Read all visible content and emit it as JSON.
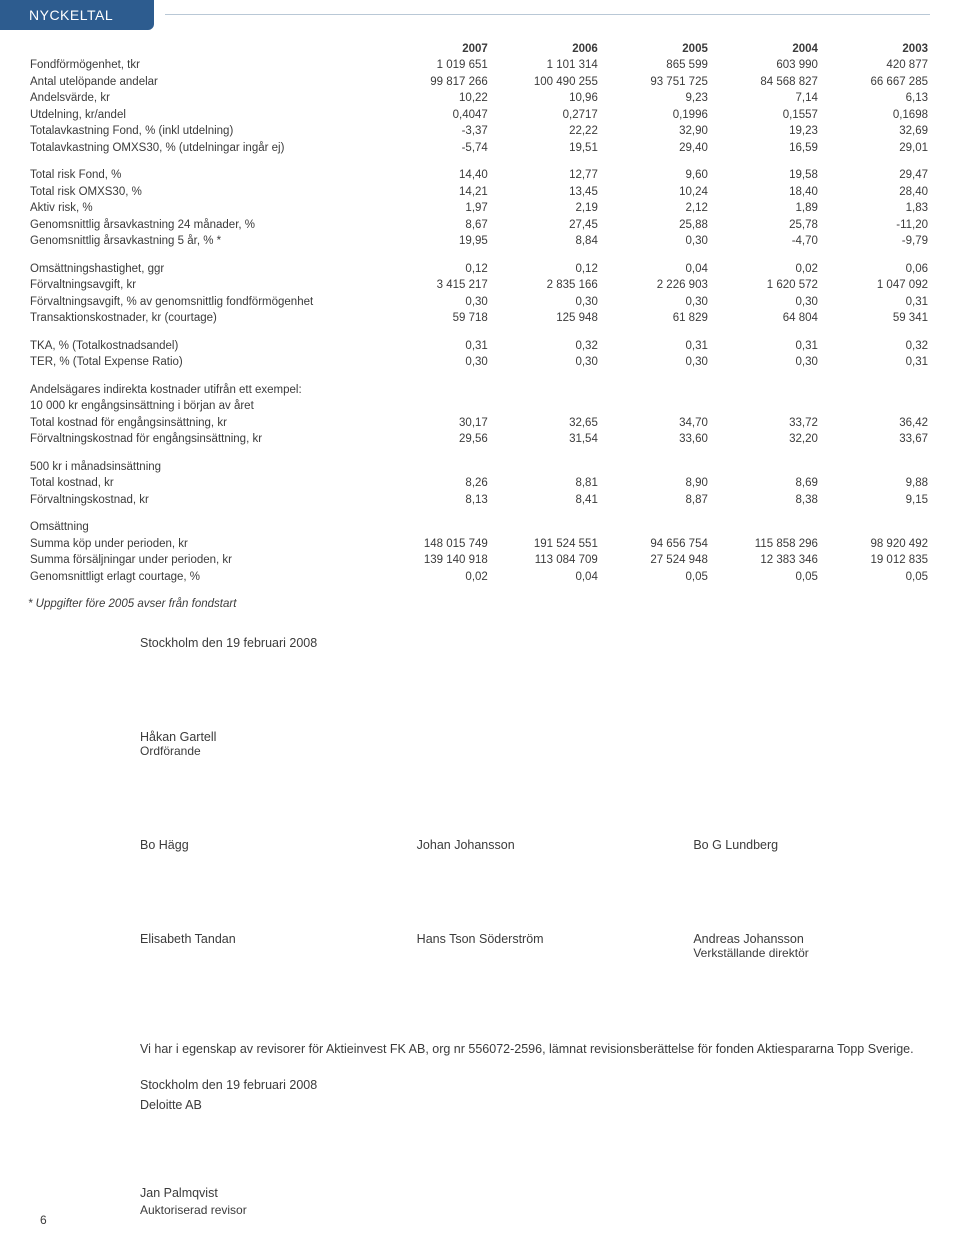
{
  "header_title": "NYCKELTAL",
  "years": [
    "2007",
    "2006",
    "2005",
    "2004",
    "2003"
  ],
  "groups": [
    {
      "rows": [
        {
          "l": "Fondförmögenhet, tkr",
          "v": [
            "1 019 651",
            "1 101 314",
            "865 599",
            "603 990",
            "420 877"
          ]
        },
        {
          "l": "Antal utelöpande andelar",
          "v": [
            "99 817 266",
            "100 490 255",
            "93 751 725",
            "84 568 827",
            "66 667 285"
          ]
        },
        {
          "l": "Andelsvärde, kr",
          "v": [
            "10,22",
            "10,96",
            "9,23",
            "7,14",
            "6,13"
          ]
        },
        {
          "l": "Utdelning, kr/andel",
          "v": [
            "0,4047",
            "0,2717",
            "0,1996",
            "0,1557",
            "0,1698"
          ]
        },
        {
          "l": "Totalavkastning Fond, %  (inkl utdelning)",
          "v": [
            "-3,37",
            "22,22",
            "32,90",
            "19,23",
            "32,69"
          ]
        },
        {
          "l": "Totalavkastning OMXS30, % (utdelningar ingår ej)",
          "v": [
            "-5,74",
            "19,51",
            "29,40",
            "16,59",
            "29,01"
          ]
        }
      ]
    },
    {
      "rows": [
        {
          "l": "Total risk Fond, %",
          "v": [
            "14,40",
            "12,77",
            "9,60",
            "19,58",
            "29,47"
          ]
        },
        {
          "l": "Total risk OMXS30, %",
          "v": [
            "14,21",
            "13,45",
            "10,24",
            "18,40",
            "28,40"
          ]
        },
        {
          "l": "Aktiv risk, %",
          "v": [
            "1,97",
            "2,19",
            "2,12",
            "1,89",
            "1,83"
          ]
        },
        {
          "l": "Genomsnittlig årsavkastning 24 månader, %",
          "v": [
            "8,67",
            "27,45",
            "25,88",
            "25,78",
            "-11,20"
          ]
        },
        {
          "l": "Genomsnittlig årsavkastning 5 år, % *",
          "v": [
            "19,95",
            "8,84",
            "0,30",
            "-4,70",
            "-9,79"
          ]
        }
      ]
    },
    {
      "rows": [
        {
          "l": "Omsättningshastighet, ggr",
          "v": [
            "0,12",
            "0,12",
            "0,04",
            "0,02",
            "0,06"
          ]
        },
        {
          "l": "Förvaltningsavgift, kr",
          "v": [
            "3 415 217",
            "2 835 166",
            "2 226 903",
            "1 620 572",
            "1 047 092"
          ]
        },
        {
          "l": "Förvaltningsavgift, % av genomsnittlig fondförmögenhet",
          "v": [
            "0,30",
            "0,30",
            "0,30",
            "0,30",
            "0,31"
          ]
        },
        {
          "l": "Transaktionskostnader, kr (courtage)",
          "v": [
            "59 718",
            "125 948",
            "61 829",
            "64 804",
            "59 341"
          ]
        }
      ]
    },
    {
      "rows": [
        {
          "l": "TKA, % (Totalkostnadsandel)",
          "v": [
            "0,31",
            "0,32",
            "0,31",
            "0,31",
            "0,32"
          ]
        },
        {
          "l": "TER, % (Total Expense Ratio)",
          "v": [
            "0,30",
            "0,30",
            "0,30",
            "0,30",
            "0,31"
          ]
        }
      ]
    },
    {
      "pre": [
        "Andelsägares indirekta kostnader utifrån ett exempel:",
        "10 000 kr engångsinsättning i början av året"
      ],
      "rows": [
        {
          "l": "Total kostnad för engångsinsättning, kr",
          "v": [
            "30,17",
            "32,65",
            "34,70",
            "33,72",
            "36,42"
          ]
        },
        {
          "l": "Förvaltningskostnad för engångsinsättning, kr",
          "v": [
            "29,56",
            "31,54",
            "33,60",
            "32,20",
            "33,67"
          ]
        }
      ]
    },
    {
      "pre": [
        "500 kr i månadsinsättning"
      ],
      "rows": [
        {
          "l": "Total kostnad, kr",
          "v": [
            "8,26",
            "8,81",
            "8,90",
            "8,69",
            "9,88"
          ]
        },
        {
          "l": "Förvaltningskostnad, kr",
          "v": [
            "8,13",
            "8,41",
            "8,87",
            "8,38",
            "9,15"
          ]
        }
      ]
    },
    {
      "pre": [
        "Omsättning"
      ],
      "rows": [
        {
          "l": "Summa köp under perioden, kr",
          "v": [
            "148 015 749",
            "191 524 551",
            "94 656 754",
            "115 858 296",
            "98 920 492"
          ]
        },
        {
          "l": "Summa försäljningar under perioden, kr",
          "v": [
            "139 140 918",
            "113 084 709",
            "27 524 948",
            "12 383 346",
            "19 012 835"
          ]
        },
        {
          "l": "Genomsnittligt erlagt courtage, %",
          "v": [
            "0,02",
            "0,04",
            "0,05",
            "0,05",
            "0,05"
          ]
        }
      ]
    }
  ],
  "footnote": "* Uppgifter före 2005 avser från fondstart",
  "sig_date_top": "Stockholm den 19 februari 2008",
  "sig_rows": [
    [
      {
        "n": "Håkan Gartell",
        "t": "Ordförande"
      }
    ],
    [
      {
        "n": "Bo Hägg"
      },
      {
        "n": "Johan Johansson"
      },
      {
        "n": "Bo G Lundberg"
      }
    ],
    [
      {
        "n": "Elisabeth Tandan"
      },
      {
        "n": "Hans Tson Söderström"
      },
      {
        "n": "Andreas Johansson",
        "t": "Verkställande direktör"
      }
    ]
  ],
  "auditor_text": "Vi har i egenskap av revisorer för Aktieinvest FK AB, org nr 556072-2596, lämnat revisionsberättelse för fonden Aktiespararna Topp Sverige.",
  "auditor_date": "Stockholm den 19 februari 2008",
  "auditor_firm": "Deloitte AB",
  "auditor_name": "Jan Palmqvist",
  "auditor_title": "Auktoriserad revisor",
  "page_number": "6",
  "colors": {
    "header_bg": "#2d5c8f",
    "header_text": "#ffffff",
    "body_text": "#3b3b3b",
    "line": "#b9c8d6"
  }
}
